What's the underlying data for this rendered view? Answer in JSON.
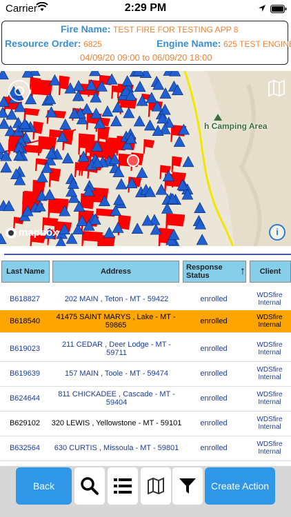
{
  "status_bar": {
    "carrier": "Carrier",
    "time": "2:29 PM"
  },
  "header": {
    "fire_label": "Fire Name:",
    "fire_value": "TEST FIRE FOR TESTING APP 8",
    "resource_label": "Resource Order:",
    "resource_value": "6825",
    "engine_label": "Engine Name:",
    "engine_value": "625 TEST ENGINE",
    "date_range": "04/09/20 09:00 to 06/09/20 18:00"
  },
  "map": {
    "place_label": "h Camping Area",
    "attribution": "mapbox",
    "info_glyph": "i"
  },
  "table": {
    "columns": [
      "Last Name",
      "Address",
      "Response Status",
      "Client"
    ],
    "sort_indicator": "↑",
    "rows": [
      {
        "last_name": "B618827",
        "address": "202 MAIN , Teton - MT - 59422",
        "status": "enrolled",
        "client": "WDSfire Internal"
      },
      {
        "last_name": "B618540",
        "address": "41475 SAINT MARYS , Lake - MT - 59865",
        "status": "enrolled",
        "client": "WDSfire Internal"
      },
      {
        "last_name": "B619023",
        "address": "211 CEDAR , Deer Lodge - MT - 59711",
        "status": "enrolled",
        "client": "WDSfire Internal"
      },
      {
        "last_name": "B619639",
        "address": "157 MAIN , Toole - MT - 59474",
        "status": "enrolled",
        "client": "WDSfire Internal"
      },
      {
        "last_name": "B624644",
        "address": "811 CHICKADEE , Cascade - MT - 59404",
        "status": "enrolled",
        "client": "WDSfire Internal"
      },
      {
        "last_name": "B629102",
        "address": "320 LEWIS , Yellowstone - MT - 59101",
        "status": "enrolled",
        "client": "WDSfire Internal"
      },
      {
        "last_name": "B632564",
        "address": "630 CURTIS , Missoula - MT - 59801",
        "status": "enrolled",
        "client": "WDSfire Internal"
      }
    ]
  },
  "toolbar": {
    "back_label": "Back",
    "create_action_label": "Create Action",
    "icons": [
      "search-icon",
      "list-icon",
      "map-icon",
      "filter-icon"
    ]
  },
  "colors": {
    "label_blue": "#3a8fcf",
    "value_orange": "#e8843a",
    "header_cell": "#87ceeb",
    "highlight_row": "#ffa500",
    "button_blue": "#2f97e8",
    "marker_red": "#ff0000",
    "marker_blue": "#1f5fd1"
  }
}
